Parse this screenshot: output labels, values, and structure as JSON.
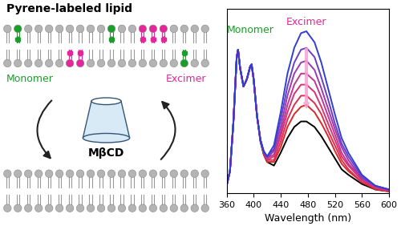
{
  "diagram": {
    "title": "Pyrene-labeled lipid",
    "monomer_label": "Monomer",
    "excimer_label": "Excimer",
    "carrier_label": "MβCD"
  },
  "chart_data": {
    "type": "line",
    "xlabel": "Wavelength (nm)",
    "annotations": [
      {
        "text": "Monomer"
      },
      {
        "text": "Excimer"
      }
    ],
    "x": [
      360,
      365,
      370,
      375,
      377,
      380,
      385,
      390,
      395,
      397,
      400,
      405,
      410,
      415,
      420,
      430,
      440,
      450,
      460,
      470,
      478,
      490,
      500,
      510,
      520,
      530,
      540,
      560,
      580,
      600
    ],
    "series": [
      {
        "color": "#2f3fd6",
        "values": [
          0.04,
          0.12,
          0.38,
          0.74,
          0.78,
          0.68,
          0.58,
          0.62,
          0.69,
          0.7,
          0.62,
          0.42,
          0.29,
          0.23,
          0.2,
          0.26,
          0.44,
          0.65,
          0.79,
          0.87,
          0.88,
          0.82,
          0.71,
          0.57,
          0.43,
          0.3,
          0.22,
          0.1,
          0.04,
          0.02
        ]
      },
      {
        "color": "#6a3dc4",
        "values": [
          0.04,
          0.12,
          0.38,
          0.74,
          0.78,
          0.68,
          0.58,
          0.62,
          0.69,
          0.7,
          0.62,
          0.42,
          0.29,
          0.22,
          0.2,
          0.24,
          0.4,
          0.58,
          0.71,
          0.78,
          0.79,
          0.74,
          0.63,
          0.51,
          0.38,
          0.27,
          0.2,
          0.09,
          0.04,
          0.02
        ]
      },
      {
        "color": "#9a3aae",
        "values": [
          0.04,
          0.12,
          0.38,
          0.74,
          0.78,
          0.68,
          0.58,
          0.62,
          0.69,
          0.7,
          0.62,
          0.42,
          0.29,
          0.22,
          0.19,
          0.23,
          0.36,
          0.53,
          0.65,
          0.71,
          0.72,
          0.67,
          0.57,
          0.46,
          0.35,
          0.25,
          0.18,
          0.08,
          0.04,
          0.02
        ]
      },
      {
        "color": "#c23592",
        "values": [
          0.04,
          0.12,
          0.38,
          0.74,
          0.78,
          0.68,
          0.58,
          0.62,
          0.69,
          0.7,
          0.62,
          0.42,
          0.29,
          0.22,
          0.19,
          0.21,
          0.33,
          0.48,
          0.59,
          0.65,
          0.65,
          0.61,
          0.52,
          0.42,
          0.32,
          0.22,
          0.16,
          0.08,
          0.03,
          0.02
        ]
      },
      {
        "color": "#d83270",
        "values": [
          0.04,
          0.12,
          0.38,
          0.74,
          0.78,
          0.68,
          0.58,
          0.62,
          0.69,
          0.7,
          0.62,
          0.42,
          0.29,
          0.22,
          0.18,
          0.2,
          0.31,
          0.44,
          0.54,
          0.59,
          0.59,
          0.55,
          0.47,
          0.38,
          0.29,
          0.2,
          0.15,
          0.07,
          0.03,
          0.01
        ]
      },
      {
        "color": "#e02e4c",
        "values": [
          0.04,
          0.12,
          0.38,
          0.74,
          0.78,
          0.68,
          0.58,
          0.62,
          0.69,
          0.7,
          0.62,
          0.42,
          0.29,
          0.22,
          0.18,
          0.18,
          0.28,
          0.4,
          0.48,
          0.53,
          0.53,
          0.49,
          0.43,
          0.34,
          0.26,
          0.18,
          0.13,
          0.06,
          0.03,
          0.01
        ]
      },
      {
        "color": "#d42a2a",
        "values": [
          0.04,
          0.12,
          0.38,
          0.74,
          0.78,
          0.68,
          0.58,
          0.62,
          0.69,
          0.7,
          0.62,
          0.42,
          0.29,
          0.21,
          0.17,
          0.17,
          0.25,
          0.36,
          0.43,
          0.47,
          0.48,
          0.44,
          0.38,
          0.31,
          0.23,
          0.16,
          0.12,
          0.06,
          0.02,
          0.01
        ]
      },
      {
        "color": "#000000",
        "values": [
          0.04,
          0.12,
          0.38,
          0.74,
          0.78,
          0.68,
          0.58,
          0.62,
          0.69,
          0.7,
          0.62,
          0.42,
          0.28,
          0.21,
          0.17,
          0.15,
          0.22,
          0.3,
          0.36,
          0.39,
          0.39,
          0.36,
          0.31,
          0.25,
          0.19,
          0.13,
          0.1,
          0.05,
          0.02,
          0.01
        ]
      }
    ],
    "xlim": [
      360,
      600
    ],
    "xticks": [
      360,
      400,
      440,
      480,
      520,
      560,
      600
    ],
    "ylim": [
      0,
      1.0
    ],
    "tick_labels": "x"
  }
}
